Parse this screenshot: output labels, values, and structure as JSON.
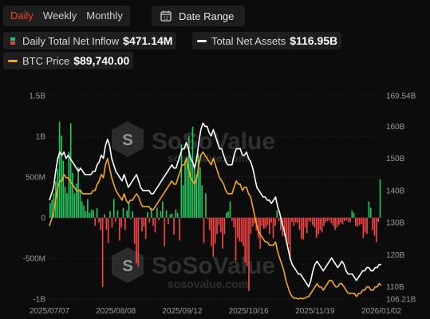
{
  "tabs": [
    {
      "label": "Daily",
      "active": true
    },
    {
      "label": "Weekly",
      "active": false
    },
    {
      "label": "Monthly",
      "active": false
    }
  ],
  "date_range": {
    "label": "Date Range",
    "icon": "calendar-icon"
  },
  "legend": {
    "inflow": {
      "label": "Daily Total Net Inflow",
      "value": "$471.14M",
      "colors": [
        "#22c55e",
        "#ef4444"
      ]
    },
    "assets": {
      "label": "Total Net Assets",
      "value": "$116.95B",
      "color": "#ffffff"
    },
    "price": {
      "label": "BTC Price",
      "value": "$89,740.00",
      "color": "#f5a623"
    }
  },
  "watermark": {
    "brand": "SoSoValue",
    "url": "sosovalue.com"
  },
  "chart_data": {
    "type": "bar",
    "x_ticks": [
      "2025/07/07",
      "2025/08/08",
      "2025/09/12",
      "2025/10/16",
      "2025/11/19",
      "2026/01/02"
    ],
    "y_left_ticks": [
      "1.5B",
      "1B",
      "500M",
      "0",
      "-500M",
      "-1B"
    ],
    "y_left_range": [
      -1000,
      1500
    ],
    "y_left_unit": "M USD",
    "y_right_ticks": [
      "169.54B",
      "160B",
      "150B",
      "140B",
      "130B",
      "120B",
      "110B",
      "106.21B"
    ],
    "y_right_range": [
      106.21,
      169.54
    ],
    "colors": {
      "inflow_positive": "#22c55e",
      "inflow_negative": "#ef4444",
      "assets": "#ffffff",
      "price": "#f5a623"
    },
    "series": [
      {
        "name": "Daily Total Net Inflow",
        "axis": "left",
        "values": [
          180,
          220,
          300,
          450,
          600,
          1180,
          1010,
          700,
          380,
          300,
          810,
          1160,
          550,
          300,
          420,
          620,
          350,
          200,
          150,
          80,
          230,
          60,
          100,
          90,
          -100,
          120,
          -60,
          -150,
          -850,
          40,
          -150,
          -310,
          80,
          -120,
          230,
          -50,
          90,
          -280,
          -120,
          120,
          -150,
          90,
          180,
          -20,
          80,
          -320,
          -560,
          -600,
          -20,
          -170,
          -110,
          -260,
          70,
          -60,
          120,
          -100,
          -180,
          120,
          -30,
          80,
          200,
          -350,
          90,
          -80,
          40,
          50,
          -210,
          100,
          60,
          -280,
          900,
          400,
          700,
          750,
          1010,
          720,
          1120,
          620,
          530,
          790,
          620,
          400,
          -310,
          300,
          -20,
          -150,
          -350,
          -480,
          -320,
          -200,
          -90,
          -180,
          -380,
          -200,
          60,
          80,
          200,
          -40,
          -120,
          -530,
          -250,
          -290,
          -300,
          -350,
          -550,
          -600,
          -900,
          -200,
          -110,
          -70,
          -160,
          -250,
          -380,
          -100,
          -140,
          -120,
          -90,
          -200,
          -60,
          -250,
          -100,
          90,
          -40,
          -150,
          -220,
          -230,
          -280,
          -330,
          -520,
          -50,
          -100,
          -60,
          -60,
          -150,
          -260,
          -270,
          -120,
          -190,
          -40,
          -50,
          -90,
          -120,
          -250,
          -200,
          -150,
          -180,
          -100,
          -60,
          -40,
          -30,
          -70,
          -100,
          -150,
          -120,
          -90,
          -60,
          -80,
          -40,
          -30,
          -50,
          -60,
          90,
          60,
          -100,
          -110,
          -90,
          -80,
          -250,
          -180,
          -200,
          200,
          120,
          -150,
          -220,
          -300,
          -50,
          471
        ]
      },
      {
        "name": "Total Net Assets",
        "axis": "right",
        "values": [
          137,
          139,
          141,
          146,
          150,
          152,
          151,
          152,
          150,
          151,
          150,
          149,
          148,
          147,
          146,
          147,
          146,
          145,
          145,
          145,
          145,
          146,
          146,
          148,
          149,
          151,
          150,
          154,
          156,
          154,
          150,
          148,
          146,
          145,
          144,
          143,
          145,
          143,
          141,
          142,
          143,
          144,
          145,
          143,
          141,
          140,
          140,
          140,
          140,
          139,
          139,
          140,
          141,
          142,
          143,
          144,
          145,
          146,
          147,
          148,
          147,
          147,
          149,
          151,
          153,
          153,
          155,
          153,
          150,
          149,
          147,
          150,
          155,
          159,
          161,
          160,
          160,
          158,
          157,
          159,
          157,
          155,
          153,
          153,
          151,
          149,
          148,
          148,
          148,
          151,
          153,
          153,
          153,
          151,
          151,
          152,
          150,
          149,
          147,
          144,
          141,
          140,
          139,
          138,
          138,
          137,
          137,
          136,
          137,
          138,
          135,
          133,
          130,
          128,
          125,
          122,
          119,
          117,
          116,
          115,
          114,
          114,
          113,
          112,
          111,
          110,
          112,
          115,
          117,
          118,
          117,
          116,
          115,
          116,
          117,
          118,
          119,
          118,
          117,
          116,
          117,
          118,
          117,
          115,
          114,
          114,
          114,
          113,
          112,
          113,
          114,
          115,
          115,
          116,
          116,
          115,
          115,
          116,
          116,
          117,
          116.95
        ]
      },
      {
        "name": "BTC Price",
        "axis": "right",
        "values": [
          129,
          131,
          133,
          137,
          141,
          143,
          143,
          145,
          144,
          144,
          143,
          142,
          141,
          140,
          140,
          140,
          139,
          139,
          139,
          139,
          139,
          140,
          140,
          142,
          143,
          145,
          144,
          148,
          150,
          147,
          144,
          142,
          140,
          139,
          138,
          137,
          139,
          137,
          136,
          137,
          137,
          138,
          139,
          138,
          136,
          135,
          135,
          135,
          135,
          134,
          134,
          135,
          136,
          137,
          138,
          139,
          140,
          141,
          142,
          143,
          142,
          142,
          144,
          146,
          148,
          148,
          150,
          147,
          144,
          143,
          142,
          144,
          148,
          151,
          152,
          151,
          150,
          149,
          148,
          150,
          148,
          146,
          144,
          143,
          142,
          140,
          139,
          139,
          139,
          141,
          143,
          142,
          142,
          140,
          141,
          141,
          139,
          138,
          135,
          132,
          129,
          127,
          126,
          125,
          124,
          124,
          123,
          123,
          123,
          124,
          121,
          119,
          117,
          115,
          112,
          110,
          108,
          107,
          106.5,
          106.5,
          106.21,
          106.5,
          106.3,
          106.5,
          106.8,
          107,
          108,
          109,
          110,
          111,
          110,
          110,
          109,
          110,
          111,
          112,
          112,
          111,
          110,
          110,
          111,
          111,
          110,
          109,
          108,
          108,
          108,
          108,
          107,
          108,
          108,
          109,
          109,
          110,
          110,
          109,
          109,
          110,
          110,
          111,
          110.5
        ]
      }
    ]
  }
}
